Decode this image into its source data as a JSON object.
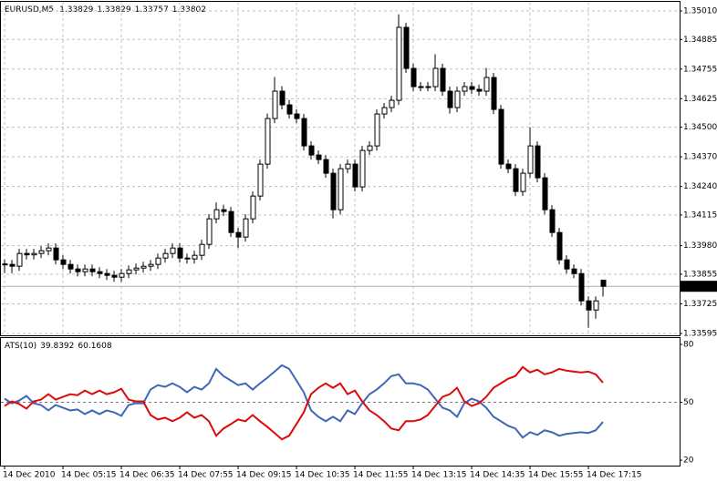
{
  "chart_data": [
    {
      "type": "candlestick",
      "title": "EURUSD,M5",
      "categories": [
        "14 Dec 2010",
        null,
        null,
        null,
        null,
        null,
        null,
        null,
        "14 Dec 05:15",
        null,
        null,
        null,
        null,
        null,
        null,
        null,
        "14 Dec 06:35",
        null,
        null,
        null,
        null,
        null,
        null,
        null,
        "14 Dec 07:55",
        null,
        null,
        null,
        null,
        null,
        null,
        null,
        "14 Dec 09:15",
        null,
        null,
        null,
        null,
        null,
        null,
        null,
        "14 Dec 10:35",
        null,
        null,
        null,
        null,
        null,
        null,
        null,
        "14 Dec 11:55",
        null,
        null,
        null,
        null,
        null,
        null,
        null,
        "14 Dec 13:15",
        null,
        null,
        null,
        null,
        null,
        null,
        null,
        "14 Dec 14:35",
        null,
        null,
        null,
        null,
        null,
        null,
        null,
        "14 Dec 15:55",
        null,
        null,
        null,
        null,
        null,
        null,
        null,
        "14 Dec 17:15",
        null,
        null
      ],
      "open": [
        1.339,
        1.33898,
        1.3389,
        1.33946,
        1.3394,
        1.33946,
        1.33958,
        1.3397,
        1.33918,
        1.33898,
        1.33878,
        1.33866,
        1.33878,
        1.33866,
        1.33858,
        1.3385,
        1.33842,
        1.33858,
        1.33874,
        1.33882,
        1.3389,
        1.33898,
        1.33926,
        1.33946,
        1.3397,
        1.33926,
        1.33922,
        1.33938,
        1.33986,
        1.34098,
        1.34138,
        1.3413,
        1.34038,
        1.34018,
        1.34098,
        1.34198,
        1.34338,
        1.34538,
        1.34658,
        1.34598,
        1.34558,
        1.34538,
        1.34418,
        1.34378,
        1.34358,
        1.34298,
        1.34138,
        1.34318,
        1.34338,
        1.34238,
        1.34398,
        1.34418,
        1.34558,
        1.34586,
        1.34618,
        1.34938,
        1.34758,
        1.34678,
        1.34678,
        1.34678,
        1.34758,
        1.34658,
        1.34586,
        1.34658,
        1.34678,
        1.34666,
        1.34658,
        1.34718,
        1.34578,
        1.34338,
        1.34318,
        1.34218,
        1.34298,
        1.34418,
        1.34278,
        1.34138,
        1.34038,
        1.33918,
        1.33878,
        1.33858,
        1.33738,
        1.33698,
        1.33829
      ],
      "high": [
        1.3392,
        1.33918,
        1.33966,
        1.33966,
        1.33966,
        1.33978,
        1.3399,
        1.3399,
        1.33938,
        1.33918,
        1.33898,
        1.33898,
        1.33898,
        1.33886,
        1.33878,
        1.3387,
        1.33878,
        1.33894,
        1.33902,
        1.3391,
        1.33918,
        1.33946,
        1.33966,
        1.3399,
        1.3399,
        1.33946,
        1.33958,
        1.34006,
        1.34118,
        1.3417,
        1.3416,
        1.3415,
        1.34058,
        1.34118,
        1.34218,
        1.34358,
        1.3456,
        1.3472,
        1.3468,
        1.3462,
        1.34578,
        1.34558,
        1.34438,
        1.34398,
        1.34378,
        1.34318,
        1.34338,
        1.34358,
        1.34358,
        1.34418,
        1.34438,
        1.34578,
        1.34606,
        1.34638,
        1.34995,
        1.34958,
        1.34778,
        1.34698,
        1.34698,
        1.3482,
        1.34778,
        1.34678,
        1.34678,
        1.34698,
        1.34698,
        1.34686,
        1.3476,
        1.34738,
        1.34598,
        1.34358,
        1.34338,
        1.34318,
        1.345,
        1.34438,
        1.34298,
        1.34158,
        1.34058,
        1.33938,
        1.33898,
        1.33878,
        1.33758,
        1.33758,
        1.33829
      ],
      "low": [
        1.3386,
        1.3386,
        1.3387,
        1.3392,
        1.3392,
        1.33926,
        1.33938,
        1.33898,
        1.33878,
        1.33858,
        1.33846,
        1.33846,
        1.33846,
        1.33838,
        1.3383,
        1.33822,
        1.33822,
        1.33838,
        1.33854,
        1.33862,
        1.3387,
        1.33878,
        1.33906,
        1.33926,
        1.33906,
        1.33902,
        1.33902,
        1.33918,
        1.33966,
        1.34078,
        1.3411,
        1.34018,
        1.3397,
        1.33998,
        1.34078,
        1.34178,
        1.34318,
        1.34518,
        1.34578,
        1.34538,
        1.34518,
        1.34398,
        1.34358,
        1.34338,
        1.34278,
        1.341,
        1.34118,
        1.34298,
        1.34218,
        1.34218,
        1.34378,
        1.34398,
        1.34538,
        1.34566,
        1.34598,
        1.34738,
        1.34658,
        1.34658,
        1.34658,
        1.34658,
        1.34638,
        1.3456,
        1.34566,
        1.34638,
        1.34646,
        1.34638,
        1.34638,
        1.34558,
        1.34318,
        1.34298,
        1.34198,
        1.34198,
        1.34278,
        1.34258,
        1.34118,
        1.34018,
        1.33898,
        1.33858,
        1.33838,
        1.33718,
        1.3362,
        1.3366,
        1.33757
      ],
      "close": [
        1.33898,
        1.3389,
        1.33946,
        1.3394,
        1.33946,
        1.33958,
        1.3397,
        1.33918,
        1.33898,
        1.33878,
        1.33866,
        1.33878,
        1.33866,
        1.33858,
        1.3385,
        1.33842,
        1.33858,
        1.33874,
        1.33882,
        1.3389,
        1.33898,
        1.33926,
        1.33946,
        1.3397,
        1.33926,
        1.33922,
        1.33938,
        1.33986,
        1.34098,
        1.34138,
        1.3413,
        1.34038,
        1.34018,
        1.34098,
        1.34198,
        1.34338,
        1.34538,
        1.34658,
        1.34598,
        1.34558,
        1.34538,
        1.34418,
        1.34378,
        1.34358,
        1.34298,
        1.34138,
        1.34318,
        1.34338,
        1.34238,
        1.34398,
        1.34418,
        1.34558,
        1.34586,
        1.34618,
        1.34938,
        1.34758,
        1.34678,
        1.34678,
        1.34678,
        1.34758,
        1.34658,
        1.34586,
        1.34658,
        1.34678,
        1.34666,
        1.34658,
        1.34718,
        1.34578,
        1.34338,
        1.34318,
        1.34218,
        1.34298,
        1.34418,
        1.34278,
        1.34138,
        1.34038,
        1.33918,
        1.33878,
        1.33858,
        1.33738,
        1.33698,
        1.33738,
        1.33802
      ],
      "ylim": [
        1.33587,
        1.3505
      ],
      "yticks": [
        {
          "value": 1.3501,
          "label": "1.35010"
        },
        1.34885,
        1.34755,
        1.34625,
        {
          "value": 1.345,
          "label": "1.34500"
        },
        {
          "value": 1.3437,
          "label": "1.34370"
        },
        {
          "value": 1.3424,
          "label": "1.34240"
        },
        1.34115,
        {
          "value": 1.3398,
          "label": "1.33980"
        },
        1.33855,
        1.33725,
        1.33595
      ],
      "grid": true
    },
    {
      "type": "line",
      "title": "ATS(10)",
      "series": [
        {
          "color": "#3f66b8",
          "values": [
            51.9,
            49.5,
            50.9,
            53.3,
            49.5,
            48.6,
            45.8,
            48.6,
            47.2,
            45.8,
            46.3,
            43.9,
            45.8,
            43.9,
            45.8,
            44.8,
            43.0,
            48.6,
            49.5,
            49.5,
            56.6,
            58.9,
            58.0,
            59.8,
            58.0,
            55.2,
            58.0,
            56.6,
            59.8,
            67.3,
            63.6,
            61.3,
            58.9,
            59.8,
            56.6,
            59.8,
            62.7,
            65.9,
            69.2,
            67.3,
            61.3,
            55.2,
            45.8,
            42.5,
            40.2,
            42.5,
            40.2,
            45.8,
            43.9,
            49.5,
            54.2,
            56.6,
            59.8,
            63.6,
            64.5,
            59.8,
            59.8,
            58.9,
            56.6,
            51.9,
            47.2,
            45.8,
            42.5,
            49.5,
            51.9,
            50.5,
            47.2,
            42.5,
            40.2,
            37.8,
            36.4,
            31.7,
            34.5,
            33.1,
            35.5,
            34.5,
            32.7,
            33.6,
            34.1,
            34.5,
            34.1,
            35.5,
            39.8392
          ]
        },
        {
          "color": "#dd0a0a",
          "values": [
            48.1,
            50.5,
            49.1,
            46.7,
            50.5,
            51.4,
            54.2,
            51.4,
            52.8,
            54.2,
            53.7,
            56.1,
            54.2,
            56.1,
            54.2,
            55.2,
            57.0,
            51.4,
            50.5,
            50.5,
            43.4,
            41.1,
            42.0,
            40.2,
            42.0,
            44.8,
            42.0,
            43.4,
            40.2,
            32.7,
            36.4,
            38.7,
            41.1,
            40.2,
            43.4,
            40.2,
            37.3,
            34.1,
            30.8,
            32.7,
            38.7,
            44.8,
            54.2,
            57.5,
            59.8,
            57.5,
            59.8,
            54.2,
            56.1,
            50.5,
            45.8,
            43.4,
            40.2,
            36.4,
            35.5,
            40.2,
            40.2,
            41.1,
            43.4,
            48.1,
            52.8,
            54.2,
            57.5,
            50.5,
            48.1,
            49.5,
            52.8,
            57.5,
            59.8,
            62.2,
            63.6,
            68.3,
            65.5,
            66.9,
            64.5,
            65.5,
            67.3,
            66.4,
            65.9,
            65.5,
            65.9,
            64.5,
            60.1608
          ]
        }
      ],
      "ylim": [
        17.2,
        83.3
      ],
      "yticks": [
        80,
        50,
        20
      ],
      "levels": [
        50
      ]
    }
  ]
}
